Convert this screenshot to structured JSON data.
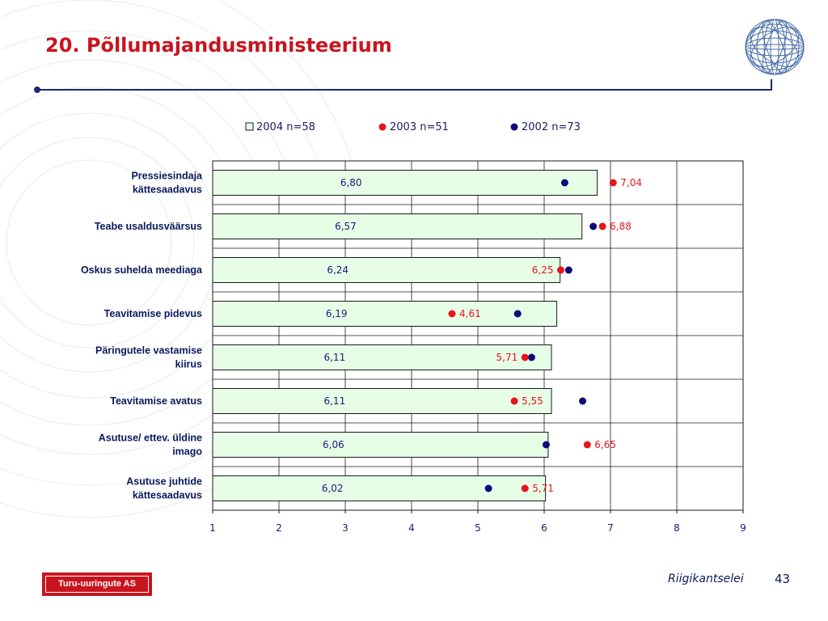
{
  "slide": {
    "title": "20. Põllumajandusministeerium",
    "footer_source": "Riigikantselei",
    "page_number": "43",
    "company_logo_text": "Turu-uuringute AS"
  },
  "colors": {
    "title": "#c8141e",
    "bar_fill": "#e6fde6",
    "bar_stroke": "#1a1a1a",
    "dot_2003": "#e8141e",
    "dot_2002": "#0a0a7a",
    "rule": "#1a2a6c"
  },
  "icons": {
    "logo": "wireframe-globe-icon"
  },
  "chart_data": {
    "type": "bar",
    "orientation": "horizontal",
    "categories": [
      "Pressiesindaja\nkättesaadavus",
      "Teabe usaldusväärsus",
      "Oskus suhelda meediaga",
      "Teavitamise pidevus",
      "Päringutele vastamise\nkiirus",
      "Teavitamise avatus",
      "Asutuse/ ettev. üldine\nimago",
      "Asutuse juhtide\nkättesaadavus"
    ],
    "series": [
      {
        "name": "2004 n=58",
        "mark": "bar",
        "values": [
          6.8,
          6.57,
          6.24,
          6.19,
          6.11,
          6.11,
          6.06,
          6.02
        ],
        "labels": [
          "6,80",
          "6,57",
          "6,24",
          "6,19",
          "6,11",
          "6,11",
          "6,06",
          "6,02"
        ]
      },
      {
        "name": "2003 n=51",
        "mark": "dot",
        "values": [
          7.04,
          6.88,
          6.25,
          4.61,
          5.71,
          5.55,
          6.65,
          5.71
        ],
        "labels": [
          "7,04",
          "6,88",
          "6,25",
          "4,61",
          "5,71",
          "5,55",
          "6,65",
          "5,71"
        ]
      },
      {
        "name": "2002 n=73",
        "mark": "dot",
        "values": [
          6.31,
          6.74,
          6.37,
          5.6,
          5.81,
          6.58,
          6.03,
          5.16
        ]
      }
    ],
    "xlim": [
      1,
      9
    ],
    "xticks": [
      "1",
      "2",
      "3",
      "4",
      "5",
      "6",
      "7",
      "8",
      "9"
    ],
    "grid": true,
    "legend_position": "top"
  }
}
